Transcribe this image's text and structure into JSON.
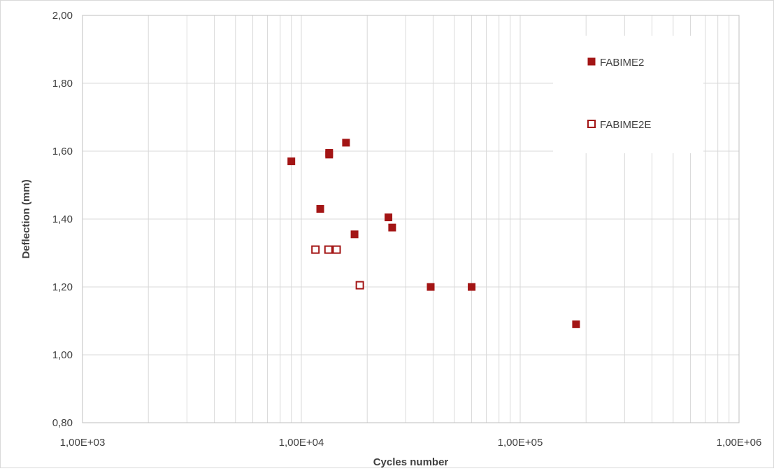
{
  "chart_data": {
    "type": "scatter",
    "title": "",
    "xlabel": "Cycles number",
    "ylabel": "Deflection (mm)",
    "xscale": "log",
    "xlim": [
      1000,
      1000000
    ],
    "ylim": [
      0.8,
      2.0
    ],
    "grid": true,
    "legend_position": "top-right",
    "x_tick_labels": [
      "1,00E+03",
      "1,00E+04",
      "1,00E+05",
      "1,00E+06"
    ],
    "x_tick_values": [
      1000,
      10000,
      100000,
      1000000
    ],
    "y_tick_labels": [
      "0,80",
      "1,00",
      "1,20",
      "1,40",
      "1,60",
      "1,80",
      "2,00"
    ],
    "y_tick_values": [
      0.8,
      1.0,
      1.2,
      1.4,
      1.6,
      1.8,
      2.0
    ],
    "series": [
      {
        "name": "FABIME2",
        "marker": "filled-square",
        "color": "#a31515",
        "points": [
          {
            "x": 9000,
            "y": 1.57
          },
          {
            "x": 12200,
            "y": 1.43
          },
          {
            "x": 13400,
            "y": 1.595
          },
          {
            "x": 13400,
            "y": 1.59
          },
          {
            "x": 16000,
            "y": 1.625
          },
          {
            "x": 17500,
            "y": 1.355
          },
          {
            "x": 25000,
            "y": 1.405
          },
          {
            "x": 26000,
            "y": 1.375
          },
          {
            "x": 39000,
            "y": 1.2
          },
          {
            "x": 60000,
            "y": 1.2
          },
          {
            "x": 180000,
            "y": 1.09
          }
        ]
      },
      {
        "name": "FABIME2E",
        "marker": "hollow-square",
        "color": "#a31515",
        "points": [
          {
            "x": 11600,
            "y": 1.31
          },
          {
            "x": 13300,
            "y": 1.31
          },
          {
            "x": 14500,
            "y": 1.31
          },
          {
            "x": 18500,
            "y": 1.205
          }
        ]
      }
    ]
  }
}
